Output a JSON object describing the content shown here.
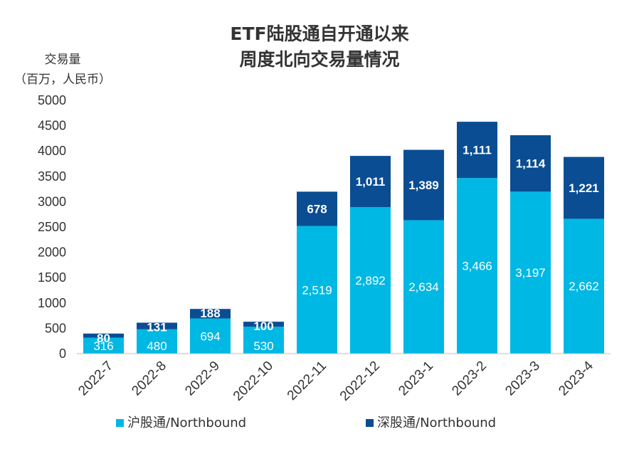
{
  "chart_data": {
    "type": "bar",
    "stacked": true,
    "title_lines": [
      "ETF陆股通自开通以来",
      "周度北向交易量情况"
    ],
    "ylabel_lines": [
      "交易量",
      "（百万，人民币）"
    ],
    "xlabel": "",
    "ylim": [
      0,
      5000
    ],
    "yticks": [
      0,
      500,
      1000,
      1500,
      2000,
      2500,
      3000,
      3500,
      4000,
      4500,
      5000
    ],
    "grid": false,
    "legend_position": "bottom",
    "categories": [
      "2022-7",
      "2022-8",
      "2022-9",
      "2022-10",
      "2022-11",
      "2022-12",
      "2023-1",
      "2023-2",
      "2023-3",
      "2023-4"
    ],
    "series": [
      {
        "name": "沪股通/Northbound",
        "color": "#00b8e4",
        "values": [
          316,
          480,
          694,
          530,
          2519,
          2892,
          2634,
          3466,
          3197,
          2662
        ],
        "labels": [
          "316",
          "480",
          "694",
          "530",
          "2,519",
          "2,892",
          "2,634",
          "3,466",
          "3,197",
          "2,662"
        ]
      },
      {
        "name": "深股通/Northbound",
        "color": "#0a4d92",
        "values": [
          80,
          131,
          188,
          100,
          678,
          1011,
          1389,
          1111,
          1114,
          1221
        ],
        "labels": [
          "80",
          "131",
          "188",
          "100",
          "678",
          "1,011",
          "1,389",
          "1,111",
          "1,114",
          "1,221"
        ]
      }
    ]
  }
}
